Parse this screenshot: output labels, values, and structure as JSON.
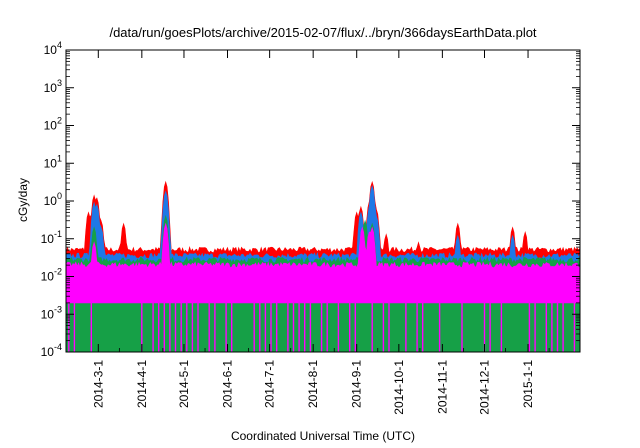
{
  "chart_data": {
    "type": "area",
    "title": "/data/run/goesPlots/archive/2015-02-07/flux/../bryn/366daysEarthData.plot",
    "xlabel": "Coordinated Universal Time (UTC)",
    "ylabel": "cGy/day",
    "x_range": [
      "2014-02-06",
      "2015-02-07"
    ],
    "ylim": [
      0.0001,
      10000
    ],
    "yscale": "log",
    "grid": false,
    "legend": "none",
    "x_ticks": [
      "2014-3-1",
      "2014-4-1",
      "2014-5-1",
      "2014-6-1",
      "2014-7-1",
      "2014-8-1",
      "2014-9-1",
      "2014-10-1",
      "2014-11-1",
      "2014-12-1",
      "2015-1-1"
    ],
    "y_ticks": [
      {
        "base": "10",
        "exp": "-4",
        "value": 0.0001
      },
      {
        "base": "10",
        "exp": "-3",
        "value": 0.001
      },
      {
        "base": "10",
        "exp": "-2",
        "value": 0.01
      },
      {
        "base": "10",
        "exp": "-1",
        "value": 0.1
      },
      {
        "base": "10",
        "exp": "0",
        "value": 1
      },
      {
        "base": "10",
        "exp": "1",
        "value": 10
      },
      {
        "base": "10",
        "exp": "2",
        "value": 100
      },
      {
        "base": "10",
        "exp": "3",
        "value": 1000
      },
      {
        "base": "10",
        "exp": "4",
        "value": 10000
      }
    ],
    "series": [
      {
        "color": "#ff0000",
        "baseline": 0.05,
        "points": [
          [
            "2014-02-22",
            0.5
          ],
          [
            "2014-02-26",
            1.4
          ],
          [
            "2014-02-28",
            1.2
          ],
          [
            "2014-03-03",
            0.3
          ],
          [
            "2014-03-19",
            0.25
          ],
          [
            "2014-04-18",
            3.2
          ],
          [
            "2014-09-01",
            0.5
          ],
          [
            "2014-09-04",
            0.7
          ],
          [
            "2014-09-10",
            0.9
          ],
          [
            "2014-09-12",
            3.2
          ],
          [
            "2014-09-15",
            0.6
          ],
          [
            "2014-09-22",
            0.13
          ],
          [
            "2014-10-15",
            0.08
          ],
          [
            "2014-11-12",
            0.25
          ],
          [
            "2014-12-21",
            0.2
          ],
          [
            "2014-12-30",
            0.15
          ]
        ]
      },
      {
        "color": "#1e78e6",
        "baseline": 0.035,
        "points": [
          [
            "2014-02-26",
            0.9
          ],
          [
            "2014-02-28",
            0.8
          ],
          [
            "2014-03-03",
            0.2
          ],
          [
            "2014-04-18",
            1.8
          ],
          [
            "2014-09-04",
            0.5
          ],
          [
            "2014-09-10",
            0.6
          ],
          [
            "2014-09-12",
            2.5
          ],
          [
            "2014-09-15",
            0.4
          ],
          [
            "2014-11-12",
            0.12
          ],
          [
            "2014-12-21",
            0.12
          ]
        ]
      },
      {
        "color": "#16a047",
        "baseline": 0.027,
        "points": [
          [
            "2014-02-26",
            0.2
          ],
          [
            "2014-04-18",
            0.4
          ],
          [
            "2014-09-07",
            0.3
          ],
          [
            "2014-09-12",
            0.25
          ]
        ]
      },
      {
        "color": "#ff00ff",
        "baseline": 0.02,
        "floor": 0.002,
        "points": [
          [
            "2014-02-26",
            0.08
          ],
          [
            "2014-04-18",
            0.25
          ],
          [
            "2014-09-05",
            0.2
          ],
          [
            "2014-09-10",
            0.15
          ],
          [
            "2014-09-12",
            0.2
          ]
        ]
      }
    ]
  }
}
